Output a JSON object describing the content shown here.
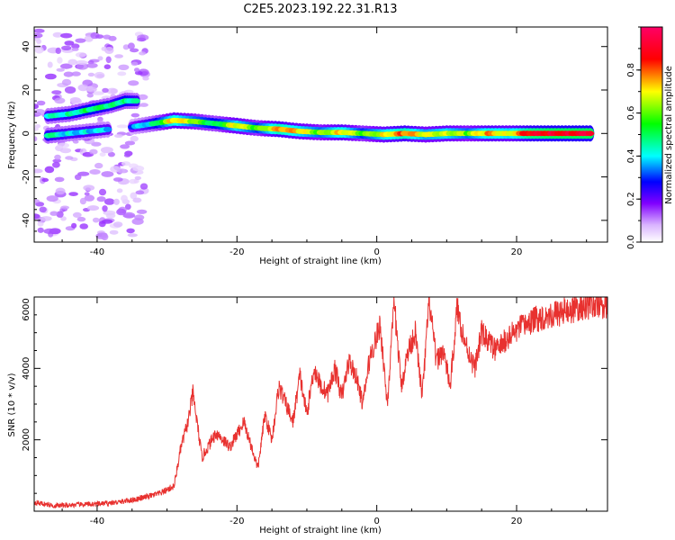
{
  "figure": {
    "title": "C2E5.2023.192.22.31.R13"
  },
  "chart_data": [
    {
      "type": "heatmap",
      "xlabel": "Height of straight line (km)",
      "ylabel": "Frequency (Hz)",
      "xlim": [
        -49,
        33
      ],
      "ylim": [
        -50,
        49
      ],
      "xticks": [
        -40,
        -20,
        0,
        20
      ],
      "yticks": [
        -40,
        -20,
        0,
        20,
        40
      ],
      "colorbar": {
        "label": "Normalized spectral amplitude",
        "range": [
          0,
          1
        ],
        "ticks": [
          0.0,
          0.2,
          0.4,
          0.6,
          0.8
        ],
        "colormap": [
          "#ffffff",
          "#d9b3ff",
          "#8000ff",
          "#0000ff",
          "#00ffff",
          "#00ff00",
          "#ffff00",
          "#ff0000",
          "#ff0066"
        ]
      },
      "ridge": [
        {
          "x": -35,
          "y": 3.0,
          "a": 0.3
        },
        {
          "x": -32,
          "y": 4.5,
          "a": 0.45
        },
        {
          "x": -29,
          "y": 6.0,
          "a": 0.75
        },
        {
          "x": -26,
          "y": 5.5,
          "a": 0.6
        },
        {
          "x": -23,
          "y": 4.5,
          "a": 0.5
        },
        {
          "x": -20,
          "y": 3.5,
          "a": 0.7
        },
        {
          "x": -17,
          "y": 2.5,
          "a": 0.55
        },
        {
          "x": -14,
          "y": 2.0,
          "a": 0.8
        },
        {
          "x": -11,
          "y": 1.0,
          "a": 0.7
        },
        {
          "x": -8,
          "y": 0.5,
          "a": 0.6
        },
        {
          "x": -5,
          "y": 0.5,
          "a": 0.75
        },
        {
          "x": -2,
          "y": 0.0,
          "a": 0.55
        },
        {
          "x": 1,
          "y": -0.5,
          "a": 0.7
        },
        {
          "x": 4,
          "y": 0.0,
          "a": 0.8
        },
        {
          "x": 7,
          "y": -0.5,
          "a": 0.65
        },
        {
          "x": 10,
          "y": 0.0,
          "a": 0.7
        },
        {
          "x": 13,
          "y": 0.0,
          "a": 0.6
        },
        {
          "x": 16,
          "y": 0.0,
          "a": 0.75
        },
        {
          "x": 19,
          "y": 0.0,
          "a": 0.7
        },
        {
          "x": 22,
          "y": 0.0,
          "a": 0.85
        },
        {
          "x": 25,
          "y": 0.0,
          "a": 0.9
        },
        {
          "x": 28,
          "y": 0.0,
          "a": 0.9
        },
        {
          "x": 31,
          "y": 0.0,
          "a": 0.9
        }
      ],
      "upper_branch": [
        {
          "x": -47,
          "y": 8.0,
          "a": 0.4
        },
        {
          "x": -44,
          "y": 9.0,
          "a": 0.45
        },
        {
          "x": -41,
          "y": 11.0,
          "a": 0.5
        },
        {
          "x": -38,
          "y": 13.0,
          "a": 0.45
        },
        {
          "x": -36,
          "y": 15.0,
          "a": 0.5
        },
        {
          "x": -34,
          "y": 15.0,
          "a": 0.4
        }
      ],
      "lower_branch": [
        {
          "x": -47,
          "y": -1.0,
          "a": 0.45
        },
        {
          "x": -44,
          "y": 0.0,
          "a": 0.4
        },
        {
          "x": -41,
          "y": 1.0,
          "a": 0.4
        },
        {
          "x": -38,
          "y": 2.0,
          "a": 0.35
        }
      ]
    },
    {
      "type": "line",
      "xlabel": "Height of straight line (km)",
      "ylabel": "SNR (10 * v/v)",
      "xlim": [
        -49,
        33
      ],
      "ylim": [
        0,
        6000
      ],
      "xticks": [
        -40,
        -20,
        0,
        20
      ],
      "yticks": [
        2000,
        4000,
        6000
      ],
      "color": "#e8312f",
      "series": [
        {
          "x": [
            -49,
            -46,
            -43,
            -40,
            -37,
            -34,
            -31,
            -29,
            -28,
            -27,
            -26.3,
            -25,
            -23,
            -21,
            -19,
            -17,
            -16,
            -15,
            -14,
            -13,
            -12,
            -11,
            -10,
            -9,
            -8,
            -7,
            -6,
            -5,
            -4,
            -3,
            -2,
            -1,
            0.5,
            1.5,
            2.5,
            3.5,
            4.5,
            5.5,
            6.5,
            7.5,
            8.5,
            9.5,
            10.5,
            11.5,
            12.5,
            14,
            15,
            17,
            19,
            21,
            23,
            25,
            27,
            29,
            31,
            33
          ],
          "y": [
            250,
            150,
            180,
            200,
            250,
            350,
            500,
            700,
            1800,
            2500,
            3300,
            1500,
            2200,
            1800,
            2500,
            1200,
            2700,
            2000,
            3500,
            3000,
            2500,
            3800,
            2700,
            4000,
            3500,
            3300,
            4000,
            3200,
            4200,
            3800,
            3000,
            4300,
            5200,
            3000,
            5800,
            3500,
            4500,
            5000,
            3200,
            5900,
            4200,
            4500,
            3500,
            5700,
            4800,
            4000,
            5000,
            4500,
            4900,
            5200,
            5400,
            5500,
            5600,
            5700,
            5800,
            5750
          ]
        }
      ]
    }
  ]
}
